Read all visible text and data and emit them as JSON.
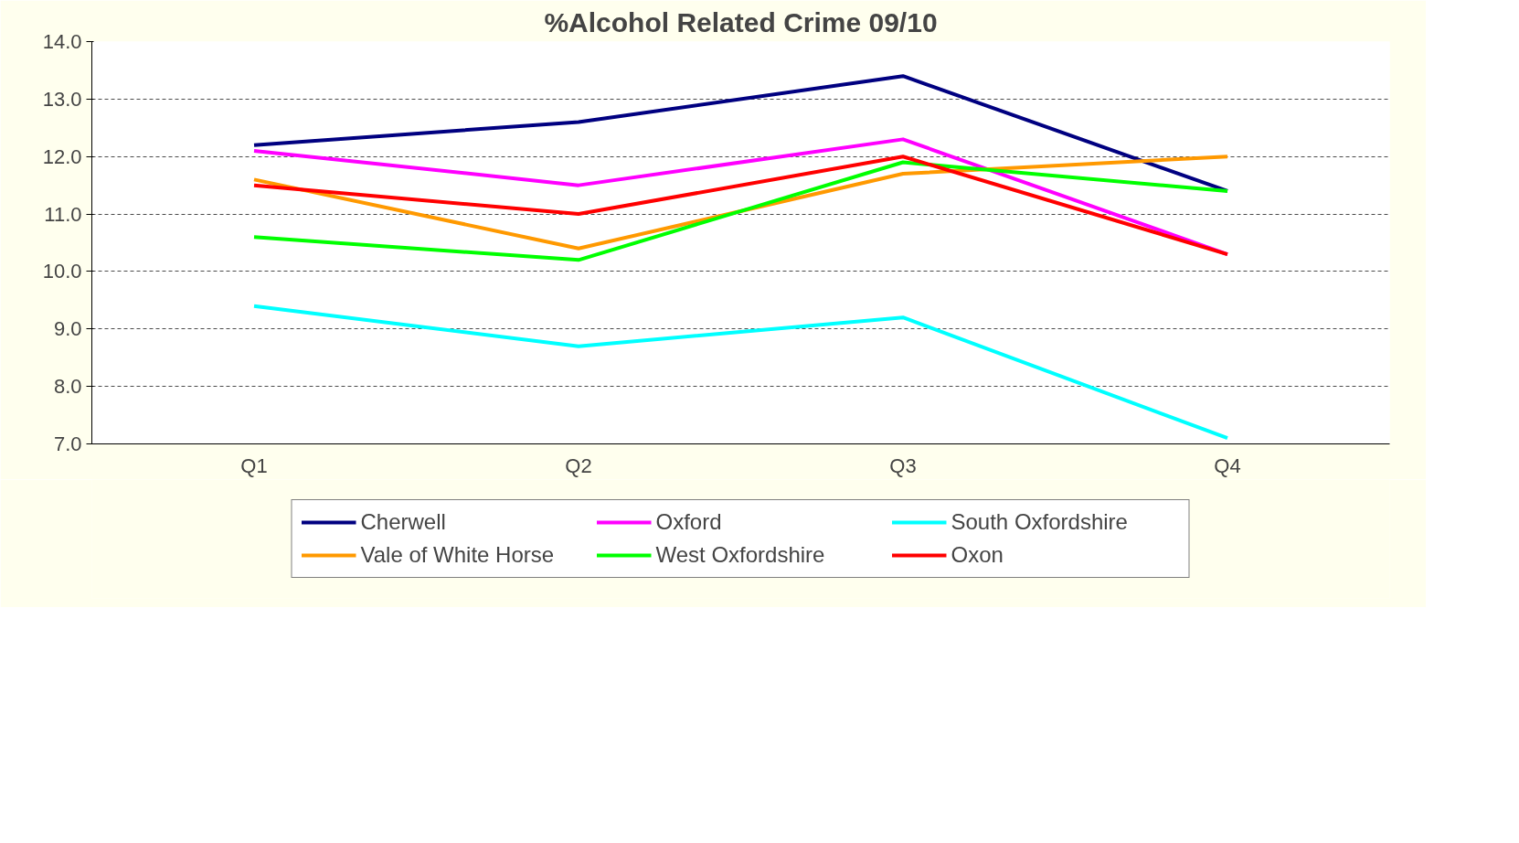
{
  "chart_data": {
    "type": "line",
    "title": "%Alcohol Related Crime 09/10",
    "categories": [
      "Q1",
      "Q2",
      "Q3",
      "Q4"
    ],
    "series": [
      {
        "name": "Cherwell",
        "color": "#000080",
        "values": [
          12.2,
          12.6,
          13.4,
          11.4
        ]
      },
      {
        "name": "Oxford",
        "color": "#ff00ff",
        "values": [
          12.1,
          11.5,
          12.3,
          10.3
        ]
      },
      {
        "name": "South Oxfordshire",
        "color": "#00ffff",
        "values": [
          9.4,
          8.7,
          9.2,
          7.1
        ]
      },
      {
        "name": "Vale of White Horse",
        "color": "#ff9900",
        "values": [
          11.6,
          10.4,
          11.7,
          12.0
        ]
      },
      {
        "name": "West Oxfordshire",
        "color": "#00ff00",
        "values": [
          10.6,
          10.2,
          11.9,
          11.4
        ]
      },
      {
        "name": "Oxon",
        "color": "#ff0000",
        "values": [
          11.5,
          11.0,
          12.0,
          10.3
        ]
      }
    ],
    "ylim": [
      7,
      14
    ],
    "yticks": [
      {
        "value": 7,
        "label": "7.0"
      },
      {
        "value": 8,
        "label": "8.0"
      },
      {
        "value": 9,
        "label": "9.0"
      },
      {
        "value": 10,
        "label": "10.0"
      },
      {
        "value": 11,
        "label": "11.0"
      },
      {
        "value": 12,
        "label": "12.0"
      },
      {
        "value": 13,
        "label": "13.0"
      },
      {
        "value": 14,
        "label": "14.0"
      }
    ],
    "grid": "y",
    "legend": "bottom",
    "marker": "none",
    "line_style": "solid"
  }
}
